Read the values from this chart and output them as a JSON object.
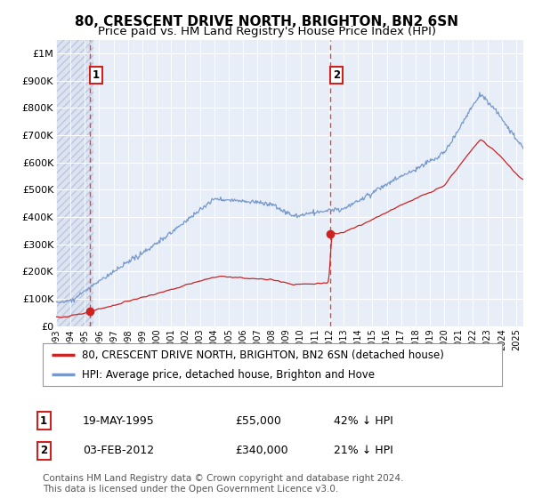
{
  "title": "80, CRESCENT DRIVE NORTH, BRIGHTON, BN2 6SN",
  "subtitle": "Price paid vs. HM Land Registry's House Price Index (HPI)",
  "ylim": [
    0,
    1050000
  ],
  "yticks": [
    0,
    100000,
    200000,
    300000,
    400000,
    500000,
    600000,
    700000,
    800000,
    900000,
    1000000
  ],
  "ytick_labels": [
    "£0",
    "£100K",
    "£200K",
    "£300K",
    "£400K",
    "£500K",
    "£600K",
    "£700K",
    "£800K",
    "£900K",
    "£1M"
  ],
  "hpi_color": "#7799cc",
  "price_color": "#cc2222",
  "dashed_line_color": "#dd4444",
  "sale1_year_f": 1995.37,
  "sale1_price": 55000,
  "sale2_year_f": 2012.09,
  "sale2_price": 340000,
  "legend_label1": "80, CRESCENT DRIVE NORTH, BRIGHTON, BN2 6SN (detached house)",
  "legend_label2": "HPI: Average price, detached house, Brighton and Hove",
  "footnote": "Contains HM Land Registry data © Crown copyright and database right 2024.\nThis data is licensed under the Open Government Licence v3.0.",
  "background_color": "#ffffff",
  "plot_bg_color": "#e8eef8",
  "hatch_bg_color": "#dde4f0",
  "grid_color": "#ffffff",
  "title_fontsize": 11,
  "subtitle_fontsize": 9.5,
  "tick_fontsize": 8,
  "legend_fontsize": 9,
  "annotation_fontsize": 9,
  "footnote_fontsize": 7.5
}
